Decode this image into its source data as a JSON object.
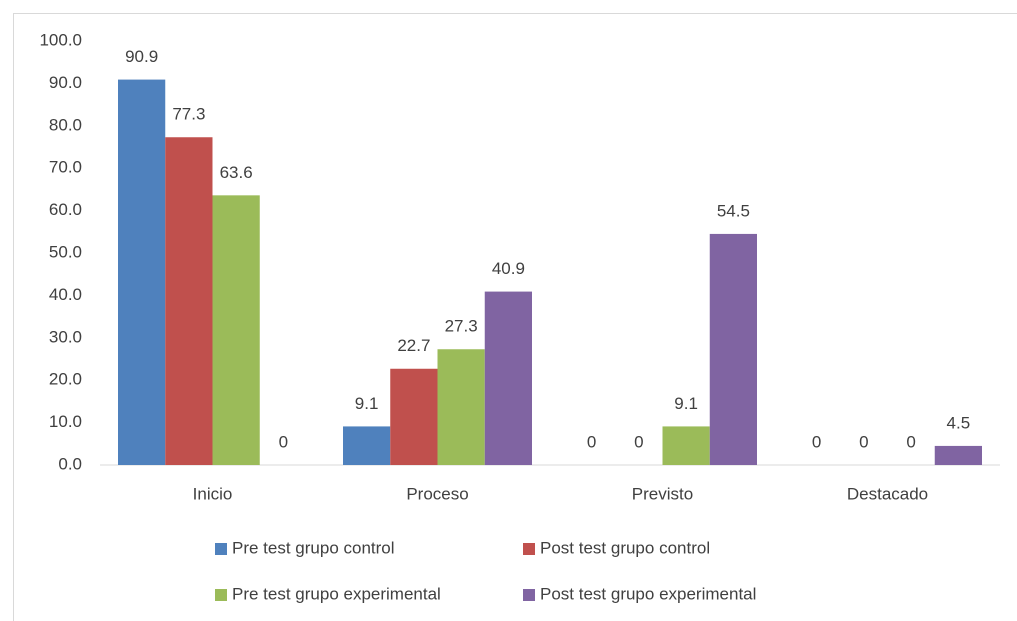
{
  "chart_data": {
    "type": "bar",
    "categories": [
      "Inicio",
      "Proceso",
      "Previsto",
      "Destacado"
    ],
    "series": [
      {
        "name": "Pre test grupo control",
        "color": "#4f81bd",
        "values": [
          90.9,
          9.1,
          0,
          0
        ]
      },
      {
        "name": "Post test grupo control",
        "color": "#c0504d",
        "values": [
          77.3,
          22.7,
          0,
          0
        ]
      },
      {
        "name": "Pre test grupo experimental",
        "color": "#9bbb59",
        "values": [
          63.6,
          27.3,
          9.1,
          0
        ]
      },
      {
        "name": "Post test grupo experimental",
        "color": "#8064a2",
        "values": [
          0,
          40.9,
          54.5,
          4.5
        ]
      }
    ],
    "ylim": [
      0,
      100
    ],
    "yticks": [
      {
        "value": 0,
        "label": "0.0"
      },
      {
        "value": 10,
        "label": "10.0"
      },
      {
        "value": 20,
        "label": "20.0"
      },
      {
        "value": 30,
        "label": "30.0"
      },
      {
        "value": 40,
        "label": "40.0"
      },
      {
        "value": 50,
        "label": "50.0"
      },
      {
        "value": 60,
        "label": "60.0"
      },
      {
        "value": 70,
        "label": "70.0"
      },
      {
        "value": 80,
        "label": "80.0"
      },
      {
        "value": 90,
        "label": "90.0"
      },
      {
        "value": 100,
        "label": "100.0"
      }
    ],
    "grid": false,
    "legend": "bottom"
  }
}
